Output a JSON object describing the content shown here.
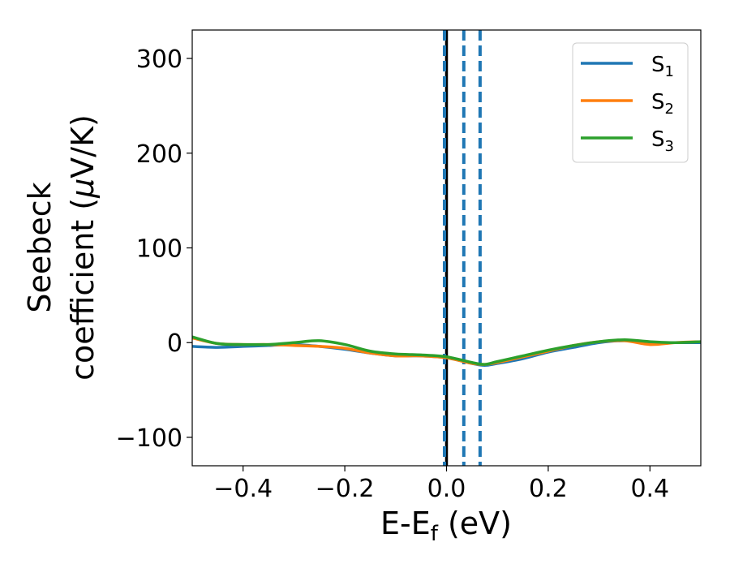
{
  "chart_data": {
    "type": "line",
    "xlabel": {
      "main": "E-E",
      "sub": "f",
      "unit": " (eV)"
    },
    "ylabel": {
      "line1": "Seebeck",
      "line2_pre": "coefficient  (",
      "mu": "μ",
      "line2_post": "V/K)"
    },
    "xlim": [
      -0.5,
      0.5
    ],
    "ylim": [
      -130,
      330
    ],
    "xticks": [
      -0.4,
      -0.2,
      0.0,
      0.2,
      0.4
    ],
    "xtick_labels": [
      "−0.4",
      "−0.2",
      "0.0",
      "0.2",
      "0.4"
    ],
    "yticks": [
      -100,
      0,
      100,
      200,
      300
    ],
    "ytick_labels": [
      "−100",
      "0",
      "100",
      "200",
      "300"
    ],
    "legend_position": "top-right",
    "vertical_lines": [
      {
        "x": 0.0,
        "style": "solid",
        "color": "#000000"
      },
      {
        "x": -0.004,
        "style": "dashed",
        "color": "#1f77b4"
      },
      {
        "x": 0.034,
        "style": "dashed",
        "color": "#1f77b4"
      },
      {
        "x": 0.066,
        "style": "dashed",
        "color": "#1f77b4"
      }
    ],
    "series": [
      {
        "name": "S",
        "sub": "1",
        "color": "#1f77b4",
        "x": [
          -0.5,
          -0.45,
          -0.4,
          -0.35,
          -0.3,
          -0.25,
          -0.2,
          -0.15,
          -0.1,
          -0.05,
          0.0,
          0.05,
          0.075,
          0.1,
          0.15,
          0.2,
          0.25,
          0.3,
          0.35,
          0.4,
          0.45,
          0.5
        ],
        "y": [
          -4,
          -5,
          -4,
          -3,
          -2,
          -4,
          -7,
          -11,
          -14,
          -14,
          -16,
          -22,
          -24,
          -22,
          -17,
          -10,
          -5,
          0,
          2,
          0,
          0,
          0
        ]
      },
      {
        "name": "S",
        "sub": "2",
        "color": "#ff7f0e",
        "x": [
          -0.5,
          -0.45,
          -0.4,
          -0.35,
          -0.3,
          -0.25,
          -0.2,
          -0.15,
          -0.1,
          -0.05,
          0.0,
          0.05,
          0.075,
          0.1,
          0.15,
          0.2,
          0.25,
          0.3,
          0.35,
          0.4,
          0.45,
          0.5
        ],
        "y": [
          5,
          -1,
          -2,
          -2,
          -3,
          -4,
          -6,
          -11,
          -14,
          -14,
          -16,
          -22,
          -23,
          -21,
          -15,
          -9,
          -3,
          1,
          2,
          -2,
          0,
          1
        ]
      },
      {
        "name": "S",
        "sub": "3",
        "color": "#2ca02c",
        "x": [
          -0.5,
          -0.45,
          -0.4,
          -0.35,
          -0.3,
          -0.25,
          -0.2,
          -0.15,
          -0.1,
          -0.05,
          0.0,
          0.05,
          0.075,
          0.1,
          0.15,
          0.2,
          0.25,
          0.3,
          0.35,
          0.4,
          0.45,
          0.5
        ],
        "y": [
          6,
          -1,
          -2,
          -2,
          0,
          2,
          -2,
          -9,
          -12,
          -13,
          -15,
          -21,
          -23,
          -20,
          -14,
          -8,
          -3,
          1,
          3,
          1,
          0,
          1
        ]
      }
    ]
  }
}
